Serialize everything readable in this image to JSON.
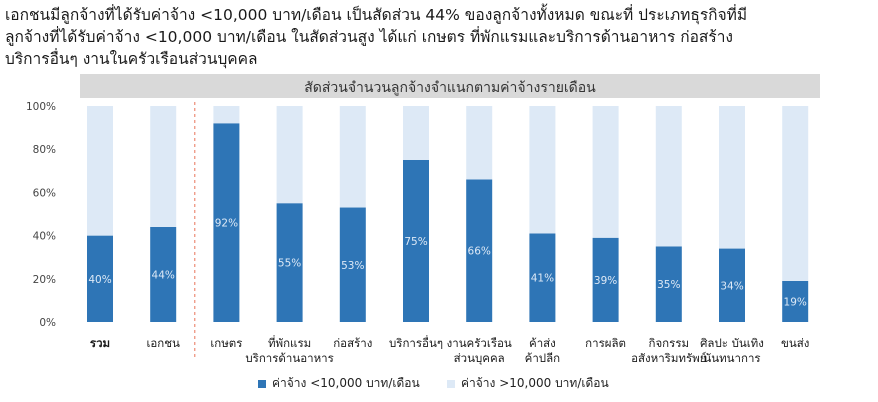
{
  "headline": {
    "line1": "เอกชนมีลูกจ้างที่ได้รับค่าจ้าง <10,000 บาท/เดือน เป็นสัดส่วน 44% ของลูกจ้างทั้งหมด ขณะที่ ประเภทธุรกิจที่มี",
    "line2": "ลูกจ้างที่ได้รับค่าจ้าง <10,000 บาท/เดือน ในสัดส่วนสูง ได้แก่ เกษตร ที่พักแรมและบริการด้านอาหาร ก่อสร้าง",
    "line3": "บริการอื่นๆ งานในครัวเรือนส่วนบุคคล"
  },
  "colors": {
    "low_wage": "#2e75b6",
    "high_wage": "#dde9f6",
    "title_band": "#d9d9d9",
    "divider": "#e8745a",
    "value_label": "#dde9f6"
  },
  "chart_data": {
    "type": "bar",
    "stacked": true,
    "title": "สัดส่วนจำนวนลูกจ้างจำแนกตามค่าจ้างรายเดือน",
    "categories": [
      [
        "รวม"
      ],
      [
        "เอกชน"
      ],
      [
        "เกษตร"
      ],
      [
        "ที่พักแรม",
        "บริการด้านอาหาร"
      ],
      [
        "ก่อสร้าง"
      ],
      [
        "บริการอื่นๆ"
      ],
      [
        "งานครัวเรือน",
        "ส่วนบุคคล"
      ],
      [
        "ค้าส่ง",
        "ค้าปลีก"
      ],
      [
        "การผลิต"
      ],
      [
        "กิจกรรม",
        "อสังหาริมทรัพย์"
      ],
      [
        "ศิลปะ บันเทิง",
        "นันทนาการ"
      ],
      [
        "ขนส่ง"
      ]
    ],
    "series": [
      {
        "name": "ค่าจ้าง <10,000 บาท/เดือน",
        "values": [
          40,
          44,
          92,
          55,
          53,
          75,
          66,
          41,
          39,
          35,
          34,
          19
        ],
        "labels": [
          "40%",
          "44%",
          "92%",
          "55%",
          "53%",
          "75%",
          "66%",
          "41%",
          "39%",
          "35%",
          "34%",
          "19%"
        ]
      },
      {
        "name": "ค่าจ้าง >10,000 บาท/เดือน",
        "values": [
          60,
          56,
          8,
          45,
          47,
          25,
          34,
          59,
          61,
          65,
          66,
          81
        ]
      }
    ],
    "yticks": [
      "0%",
      "20%",
      "40%",
      "60%",
      "80%",
      "100%"
    ],
    "ylim": [
      0,
      100
    ],
    "bold_category_index": 0,
    "divider_after_index": 1,
    "legend_position": "bottom"
  }
}
